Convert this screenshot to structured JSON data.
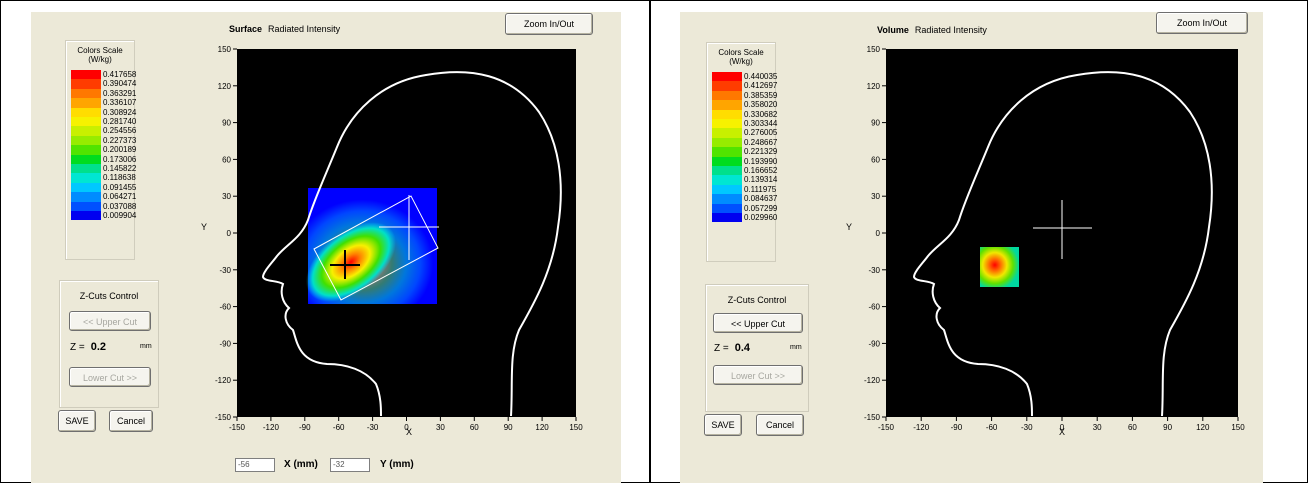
{
  "left": {
    "mode": "Surface",
    "subtitle": "Radiated Intensity",
    "zoom_label": "Zoom In/Out",
    "scale_title_1": "Colors Scale",
    "scale_title_2": "(W/kg)",
    "scale_values": [
      "0.417658",
      "0.390474",
      "0.363291",
      "0.336107",
      "0.308924",
      "0.281740",
      "0.254556",
      "0.227373",
      "0.200189",
      "0.173006",
      "0.145822",
      "0.118638",
      "0.091455",
      "0.064271",
      "0.037088",
      "0.009904"
    ],
    "zcuts_title": "Z-Cuts Control",
    "upper_cut": "<< Upper Cut",
    "upper_cut_enabled": false,
    "z_prefix": "Z =",
    "z_value": "0.2",
    "z_unit": "mm",
    "lower_cut": "Lower Cut >>",
    "save": "SAVE",
    "cancel": "Cancel",
    "x_value": "-56",
    "x_label": "X (mm)",
    "y_value": "-32",
    "y_label": "Y (mm)"
  },
  "right": {
    "mode": "Volume",
    "subtitle": "Radiated Intensity",
    "zoom_label": "Zoom In/Out",
    "scale_title_1": "Colors Scale",
    "scale_title_2": "(W/kg)",
    "scale_values": [
      "0.440035",
      "0.412697",
      "0.385359",
      "0.358020",
      "0.330682",
      "0.303344",
      "0.276005",
      "0.248667",
      "0.221329",
      "0.193990",
      "0.166652",
      "0.139314",
      "0.111975",
      "0.084637",
      "0.057299",
      "0.029960"
    ],
    "zcuts_title": "Z-Cuts Control",
    "upper_cut": "<< Upper Cut",
    "upper_cut_enabled": true,
    "z_prefix": "Z =",
    "z_value": "0.4",
    "z_unit": "mm",
    "lower_cut": "Lower Cut >>",
    "save": "SAVE",
    "cancel": "Cancel"
  },
  "plot": {
    "xlabel": "X",
    "ylabel": "Y",
    "ticks": [
      "-150",
      "-120",
      "-90",
      "-60",
      "-30",
      "0",
      "30",
      "60",
      "90",
      "120",
      "150"
    ],
    "range": [
      -150,
      150
    ]
  },
  "scale_colors": [
    "#ff0000",
    "#ff3c00",
    "#ff7800",
    "#ffa500",
    "#ffdd00",
    "#f6f200",
    "#c8f000",
    "#96ec00",
    "#50e400",
    "#00dc1e",
    "#00e08c",
    "#00e6d2",
    "#00c8ff",
    "#008cff",
    "#0050ff",
    "#0000f0"
  ],
  "colors": {
    "panel": "#ece9d8",
    "plot_bg": "#000000",
    "outline": "#ffffff"
  }
}
